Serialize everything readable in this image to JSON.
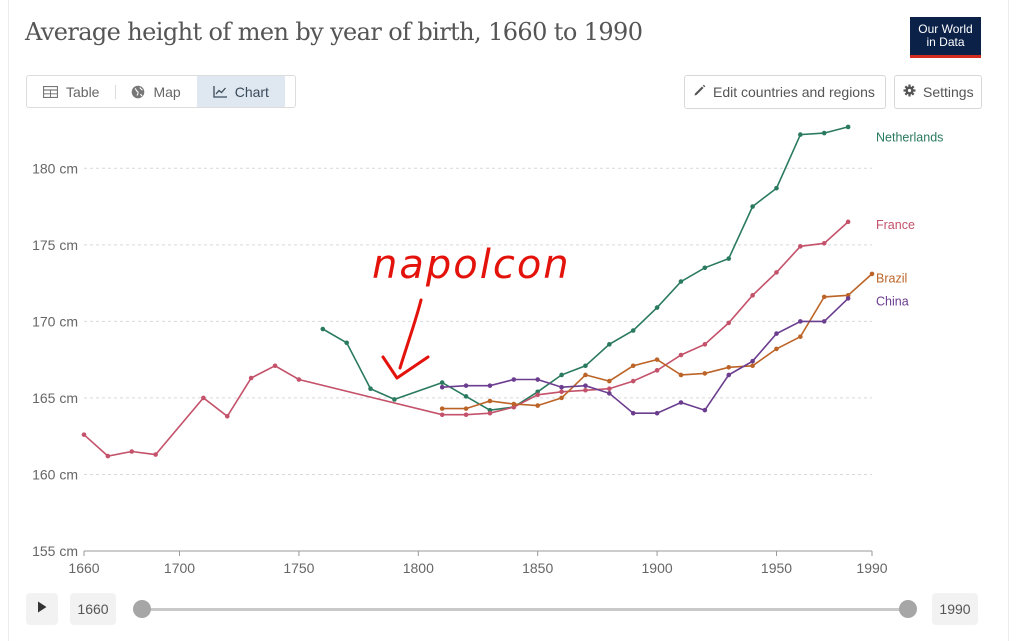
{
  "title": "Average height of men by year of birth, 1660 to 1990",
  "logo": {
    "line1": "Our World",
    "line2": "in Data"
  },
  "tabs": [
    {
      "label": "Table",
      "icon": "table-icon"
    },
    {
      "label": "Map",
      "icon": "globe-icon"
    },
    {
      "label": "Chart",
      "icon": "line-chart-icon",
      "active": true
    }
  ],
  "buttons": {
    "edit_label": "Edit countries and regions",
    "settings_label": "Settings"
  },
  "timeline": {
    "start_year": "1660",
    "end_year": "1990",
    "start_value": 1660,
    "end_value": 1990
  },
  "annotation": {
    "text": "napolcon",
    "color": "#e3120b",
    "points_to_year": 1790
  },
  "chart_data": {
    "type": "line",
    "title": "Average height of men by year of birth, 1660 to 1990",
    "xlabel": "",
    "ylabel": "",
    "xlim": [
      1660,
      1990
    ],
    "ylim": [
      155,
      182.5
    ],
    "x_ticks": [
      1660,
      1700,
      1750,
      1800,
      1850,
      1900,
      1950,
      1990
    ],
    "y_ticks": [
      155,
      160,
      165,
      170,
      175,
      180
    ],
    "y_tick_labels": [
      "155 cm",
      "160 cm",
      "165 cm",
      "170 cm",
      "175 cm",
      "180 cm"
    ],
    "grid": "horizontal-dashed",
    "legend": "inline-right",
    "series": [
      {
        "name": "Netherlands",
        "color": "#2a7a5e",
        "points": [
          [
            1760,
            169.5
          ],
          [
            1770,
            168.6
          ],
          [
            1780,
            165.6
          ],
          [
            1790,
            164.9
          ],
          [
            1810,
            166.0
          ],
          [
            1820,
            165.1
          ],
          [
            1830,
            164.2
          ],
          [
            1840,
            164.4
          ],
          [
            1850,
            165.4
          ],
          [
            1860,
            166.5
          ],
          [
            1870,
            167.1
          ],
          [
            1880,
            168.5
          ],
          [
            1890,
            169.4
          ],
          [
            1900,
            170.9
          ],
          [
            1910,
            172.6
          ],
          [
            1920,
            173.5
          ],
          [
            1930,
            174.1
          ],
          [
            1940,
            177.5
          ],
          [
            1950,
            178.7
          ],
          [
            1960,
            182.2
          ],
          [
            1970,
            182.3
          ],
          [
            1980,
            182.7
          ]
        ]
      },
      {
        "name": "France",
        "color": "#c4526a",
        "points": [
          [
            1660,
            162.6
          ],
          [
            1670,
            161.2
          ],
          [
            1680,
            161.5
          ],
          [
            1690,
            161.3
          ],
          [
            1710,
            165.0
          ],
          [
            1720,
            163.8
          ],
          [
            1730,
            166.3
          ],
          [
            1740,
            167.1
          ],
          [
            1750,
            166.2
          ],
          [
            1810,
            163.9
          ],
          [
            1820,
            163.9
          ],
          [
            1830,
            164.0
          ],
          [
            1840,
            164.4
          ],
          [
            1850,
            165.2
          ],
          [
            1860,
            165.4
          ],
          [
            1870,
            165.5
          ],
          [
            1880,
            165.6
          ],
          [
            1890,
            166.1
          ],
          [
            1900,
            166.8
          ],
          [
            1910,
            167.8
          ],
          [
            1920,
            168.5
          ],
          [
            1930,
            169.9
          ],
          [
            1940,
            171.7
          ],
          [
            1950,
            173.2
          ],
          [
            1960,
            174.9
          ],
          [
            1970,
            175.1
          ],
          [
            1980,
            176.5
          ]
        ]
      },
      {
        "name": "Brazil",
        "color": "#bc6427",
        "points": [
          [
            1810,
            164.3
          ],
          [
            1820,
            164.3
          ],
          [
            1830,
            164.8
          ],
          [
            1840,
            164.6
          ],
          [
            1850,
            164.5
          ],
          [
            1860,
            165.0
          ],
          [
            1870,
            166.5
          ],
          [
            1880,
            166.1
          ],
          [
            1890,
            167.1
          ],
          [
            1900,
            167.5
          ],
          [
            1910,
            166.5
          ],
          [
            1920,
            166.6
          ],
          [
            1930,
            167.0
          ],
          [
            1940,
            167.1
          ],
          [
            1950,
            168.2
          ],
          [
            1960,
            169.0
          ],
          [
            1970,
            171.6
          ],
          [
            1980,
            171.7
          ],
          [
            1990,
            173.1
          ]
        ]
      },
      {
        "name": "China",
        "color": "#6b3d8f",
        "points": [
          [
            1810,
            165.7
          ],
          [
            1820,
            165.8
          ],
          [
            1830,
            165.8
          ],
          [
            1840,
            166.2
          ],
          [
            1850,
            166.2
          ],
          [
            1860,
            165.7
          ],
          [
            1870,
            165.8
          ],
          [
            1880,
            165.3
          ],
          [
            1890,
            164.0
          ],
          [
            1900,
            164.0
          ],
          [
            1910,
            164.7
          ],
          [
            1920,
            164.2
          ],
          [
            1930,
            166.5
          ],
          [
            1940,
            167.4
          ],
          [
            1950,
            169.2
          ],
          [
            1960,
            170.0
          ],
          [
            1970,
            170.0
          ],
          [
            1980,
            171.5
          ]
        ]
      }
    ],
    "end_labels": [
      {
        "name": "Netherlands",
        "label_value": 182.0
      },
      {
        "name": "France",
        "label_value": 176.3
      },
      {
        "name": "Brazil",
        "label_value": 172.8
      },
      {
        "name": "China",
        "label_value": 171.3
      }
    ]
  }
}
